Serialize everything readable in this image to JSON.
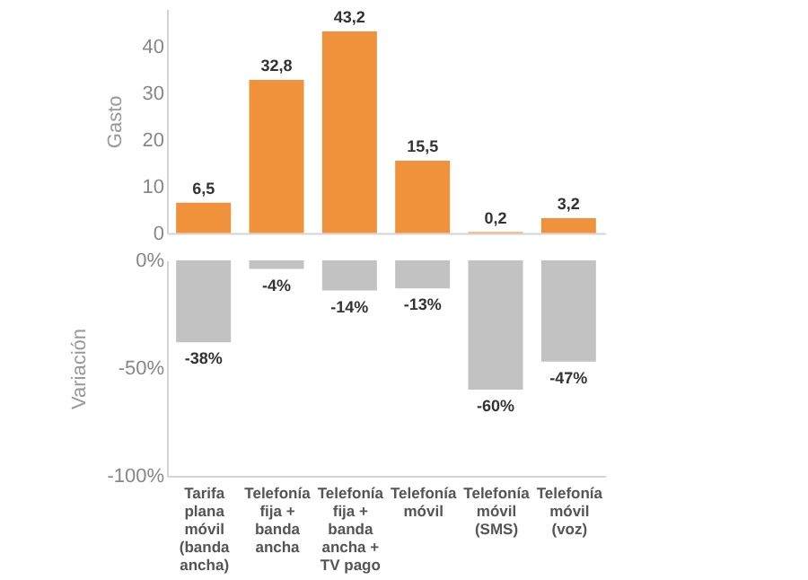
{
  "chart_data": [
    {
      "type": "bar",
      "ylabel": "Gasto",
      "categories": [
        null,
        null,
        null,
        null,
        null,
        null
      ],
      "values": [
        6.5,
        32.8,
        43.2,
        15.5,
        0.2,
        3.2
      ],
      "value_labels": [
        "6,5",
        "32,8",
        "43,2",
        "15,5",
        "0,2",
        "3,2"
      ],
      "color": "#f0923b",
      "ylim": [
        0,
        48
      ],
      "yticks": [
        0,
        10,
        20,
        30,
        40
      ],
      "tick_labels": "y",
      "grid": false
    },
    {
      "type": "bar",
      "ylabel": "Variación",
      "categories": [
        "Tarifa plana móvil (banda ancha)",
        "Telefonía fija + banda ancha",
        "Telefonía fija + banda ancha + TV pago",
        "Telefonía móvil",
        "Telefonía móvil (SMS)",
        "Telefonía móvil (voz)"
      ],
      "values": [
        -38,
        -4,
        -14,
        -13,
        -60,
        -47
      ],
      "value_labels": [
        "-38%",
        "-4%",
        "-14%",
        "-13%",
        "-60%",
        "-47%"
      ],
      "color": "#c2c2c2",
      "ylim": [
        -100,
        0
      ],
      "yticks": [
        {
          "value": -100,
          "label": "-100%"
        },
        {
          "value": -50,
          "label": "-50%"
        },
        {
          "value": 0,
          "label": "0%"
        }
      ],
      "grid": false
    }
  ]
}
